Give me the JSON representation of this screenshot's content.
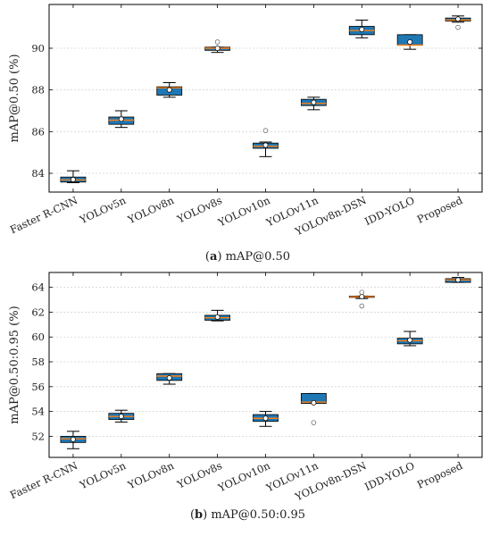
{
  "chart_data": [
    {
      "type": "box",
      "ylabel": "mAP@0.50 (%)",
      "caption": {
        "letter": "a",
        "text": "mAP@0.50"
      },
      "ylim": [
        83.1,
        92.1
      ],
      "yticks": [
        84,
        86,
        88,
        90
      ],
      "grid": "horizontal",
      "box_color": "#1f77b4",
      "median_color": "#ff7f0e",
      "categories": [
        "Faster R-CNN",
        "YOLOv5n",
        "YOLOv8n",
        "YOLOv8s",
        "YOLOv10n",
        "YOLOv11n",
        "YOLOv8n-DSN",
        "IDD-YOLO",
        "Proposed"
      ],
      "boxes": [
        {
          "whislo": 83.55,
          "q1": 83.58,
          "med": 83.68,
          "q3": 83.82,
          "whishi": 84.12,
          "mean": 83.7,
          "fliers": []
        },
        {
          "whislo": 86.2,
          "q1": 86.35,
          "med": 86.55,
          "q3": 86.7,
          "whishi": 87.0,
          "mean": 86.6,
          "fliers": []
        },
        {
          "whislo": 87.65,
          "q1": 87.75,
          "med": 88.1,
          "q3": 88.15,
          "whishi": 88.35,
          "mean": 88.0,
          "fliers": []
        },
        {
          "whislo": 89.8,
          "q1": 89.9,
          "med": 90.0,
          "q3": 90.05,
          "whishi": 90.05,
          "mean": 90.0,
          "fliers": [
            90.3
          ]
        },
        {
          "whislo": 84.8,
          "q1": 85.2,
          "med": 85.3,
          "q3": 85.45,
          "whishi": 85.5,
          "mean": 85.35,
          "fliers": [
            86.05
          ]
        },
        {
          "whislo": 87.05,
          "q1": 87.25,
          "med": 87.35,
          "q3": 87.55,
          "whishi": 87.65,
          "mean": 87.4,
          "fliers": []
        },
        {
          "whislo": 90.5,
          "q1": 90.65,
          "med": 90.85,
          "q3": 91.05,
          "whishi": 91.35,
          "mean": 90.9,
          "fliers": []
        },
        {
          "whislo": 89.95,
          "q1": 90.15,
          "med": 90.15,
          "q3": 90.65,
          "whishi": 90.65,
          "mean": 90.3,
          "fliers": []
        },
        {
          "whislo": 91.25,
          "q1": 91.3,
          "med": 91.35,
          "q3": 91.45,
          "whishi": 91.55,
          "mean": 91.4,
          "fliers": [
            91.0
          ]
        }
      ]
    },
    {
      "type": "box",
      "ylabel": "mAP@0.50:0.95 (%)",
      "caption": {
        "letter": "b",
        "text": "mAP@0.50:0.95"
      },
      "ylim": [
        50.3,
        65.2
      ],
      "yticks": [
        52,
        54,
        56,
        58,
        60,
        62,
        64
      ],
      "grid": "horizontal",
      "box_color": "#1f77b4",
      "median_color": "#ff7f0e",
      "categories": [
        "Faster R-CNN",
        "YOLOv5n",
        "YOLOv8n",
        "YOLOv8s",
        "YOLOv10n",
        "YOLOv11n",
        "YOLOv8n-DSN",
        "IDD-YOLO",
        "Proposed"
      ],
      "boxes": [
        {
          "whislo": 51.0,
          "q1": 51.5,
          "med": 51.8,
          "q3": 52.0,
          "whishi": 52.4,
          "mean": 51.75,
          "fliers": []
        },
        {
          "whislo": 53.15,
          "q1": 53.35,
          "med": 53.6,
          "q3": 53.85,
          "whishi": 54.1,
          "mean": 53.6,
          "fliers": []
        },
        {
          "whislo": 56.2,
          "q1": 56.5,
          "med": 56.85,
          "q3": 57.05,
          "whishi": 57.05,
          "mean": 56.7,
          "fliers": []
        },
        {
          "whislo": 61.3,
          "q1": 61.35,
          "med": 61.55,
          "q3": 61.75,
          "whishi": 62.15,
          "mean": 61.6,
          "fliers": []
        },
        {
          "whislo": 52.8,
          "q1": 53.2,
          "med": 53.45,
          "q3": 53.75,
          "whishi": 54.0,
          "mean": 53.45,
          "fliers": []
        },
        {
          "whislo": 54.65,
          "q1": 54.65,
          "med": 54.75,
          "q3": 55.45,
          "whishi": 55.45,
          "mean": 54.7,
          "fliers": [
            53.1
          ]
        },
        {
          "whislo": 63.1,
          "q1": 63.2,
          "med": 63.25,
          "q3": 63.3,
          "whishi": 63.3,
          "mean": 63.25,
          "fliers": [
            63.6,
            62.5
          ]
        },
        {
          "whislo": 59.3,
          "q1": 59.45,
          "med": 59.7,
          "q3": 59.9,
          "whishi": 60.45,
          "mean": 59.75,
          "fliers": []
        },
        {
          "whislo": 64.4,
          "q1": 64.4,
          "med": 64.6,
          "q3": 64.7,
          "whishi": 64.8,
          "mean": 64.6,
          "fliers": []
        }
      ]
    }
  ]
}
